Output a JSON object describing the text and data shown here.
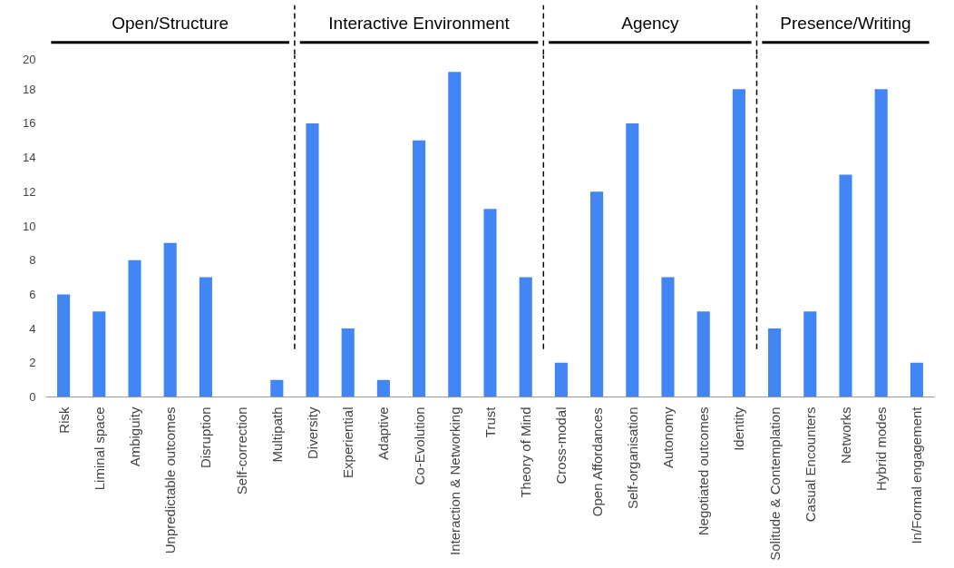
{
  "chart_data": {
    "type": "bar",
    "categories": [
      "Risk",
      "Liminal space",
      "Ambiguity",
      "Unpredictable outcomes",
      "Disruption",
      "Self-correction",
      "Multipath",
      "Diversity",
      "Experiential",
      "Adaptive",
      "Co-Evolution",
      "Interaction & Networking",
      "Trust",
      "Theory of Mind",
      "Cross-modal",
      "Open Affordances",
      "Self-organisation",
      "Autonomy",
      "Negotiated outcomes",
      "Identity",
      "Solitude & Contemplation",
      "Casual Encounters",
      "Networks",
      "Hybrid modes",
      "In/Formal engagement"
    ],
    "values": [
      6,
      5,
      8,
      9,
      7,
      0,
      1,
      16,
      4,
      1,
      15,
      19,
      11,
      7,
      2,
      12,
      16,
      7,
      5,
      18,
      4,
      5,
      13,
      18,
      2
    ],
    "color": "#4285f4",
    "ylim": [
      0,
      20
    ],
    "yticks": [
      0,
      2,
      4,
      6,
      8,
      10,
      12,
      14,
      16,
      18,
      20
    ],
    "grid": false,
    "annotations": [
      "Open/Structure",
      "Interactive Environment",
      "Agency",
      "Presence/Writing"
    ]
  }
}
